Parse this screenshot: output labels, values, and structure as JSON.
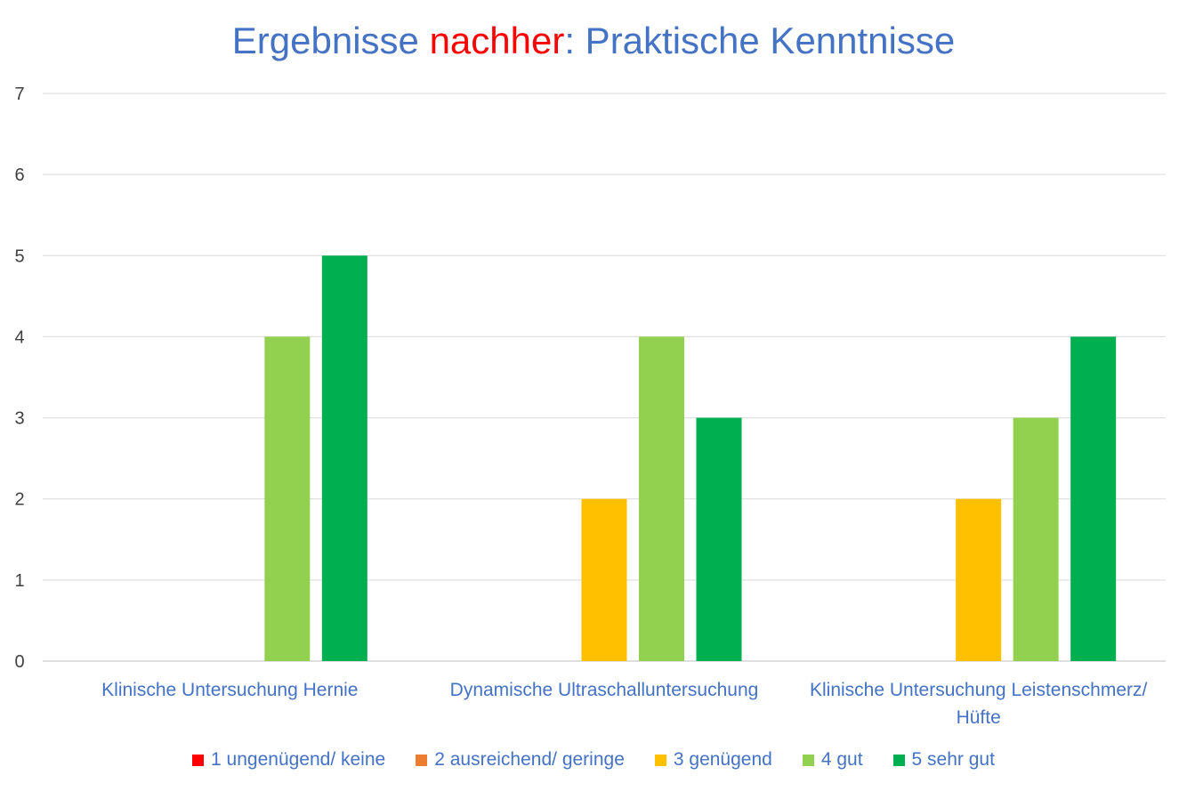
{
  "title": {
    "part1": "Ergebnisse ",
    "highlight": "nachher",
    "part2": ": Praktische Kenntnisse"
  },
  "chart_data": {
    "type": "bar",
    "categories": [
      [
        "Klinische Untersuchung Hernie"
      ],
      [
        "Dynamische Ultraschalluntersuchung"
      ],
      [
        "Klinische Untersuchung Leistenschmerz/",
        "Hüfte"
      ]
    ],
    "series": [
      {
        "name": "1 ungenügend/ keine",
        "color": "#ff0000",
        "values": [
          0,
          0,
          0
        ]
      },
      {
        "name": "2 ausreichend/ geringe",
        "color": "#ed7d31",
        "values": [
          0,
          0,
          0
        ]
      },
      {
        "name": "3 genügend",
        "color": "#ffc000",
        "values": [
          0,
          2,
          2
        ]
      },
      {
        "name": "4 gut",
        "color": "#92d050",
        "values": [
          4,
          4,
          3
        ]
      },
      {
        "name": "5 sehr gut",
        "color": "#00b050",
        "values": [
          5,
          3,
          4
        ]
      }
    ],
    "ylim": [
      0,
      7
    ],
    "yticks": [
      0,
      1,
      2,
      3,
      4,
      5,
      6,
      7
    ],
    "grid": true,
    "legend_position": "bottom",
    "axis_text_color": "#404040",
    "category_text_color": "#4472c4",
    "title_color": "#4472c4",
    "highlight_color": "#ff0000"
  }
}
